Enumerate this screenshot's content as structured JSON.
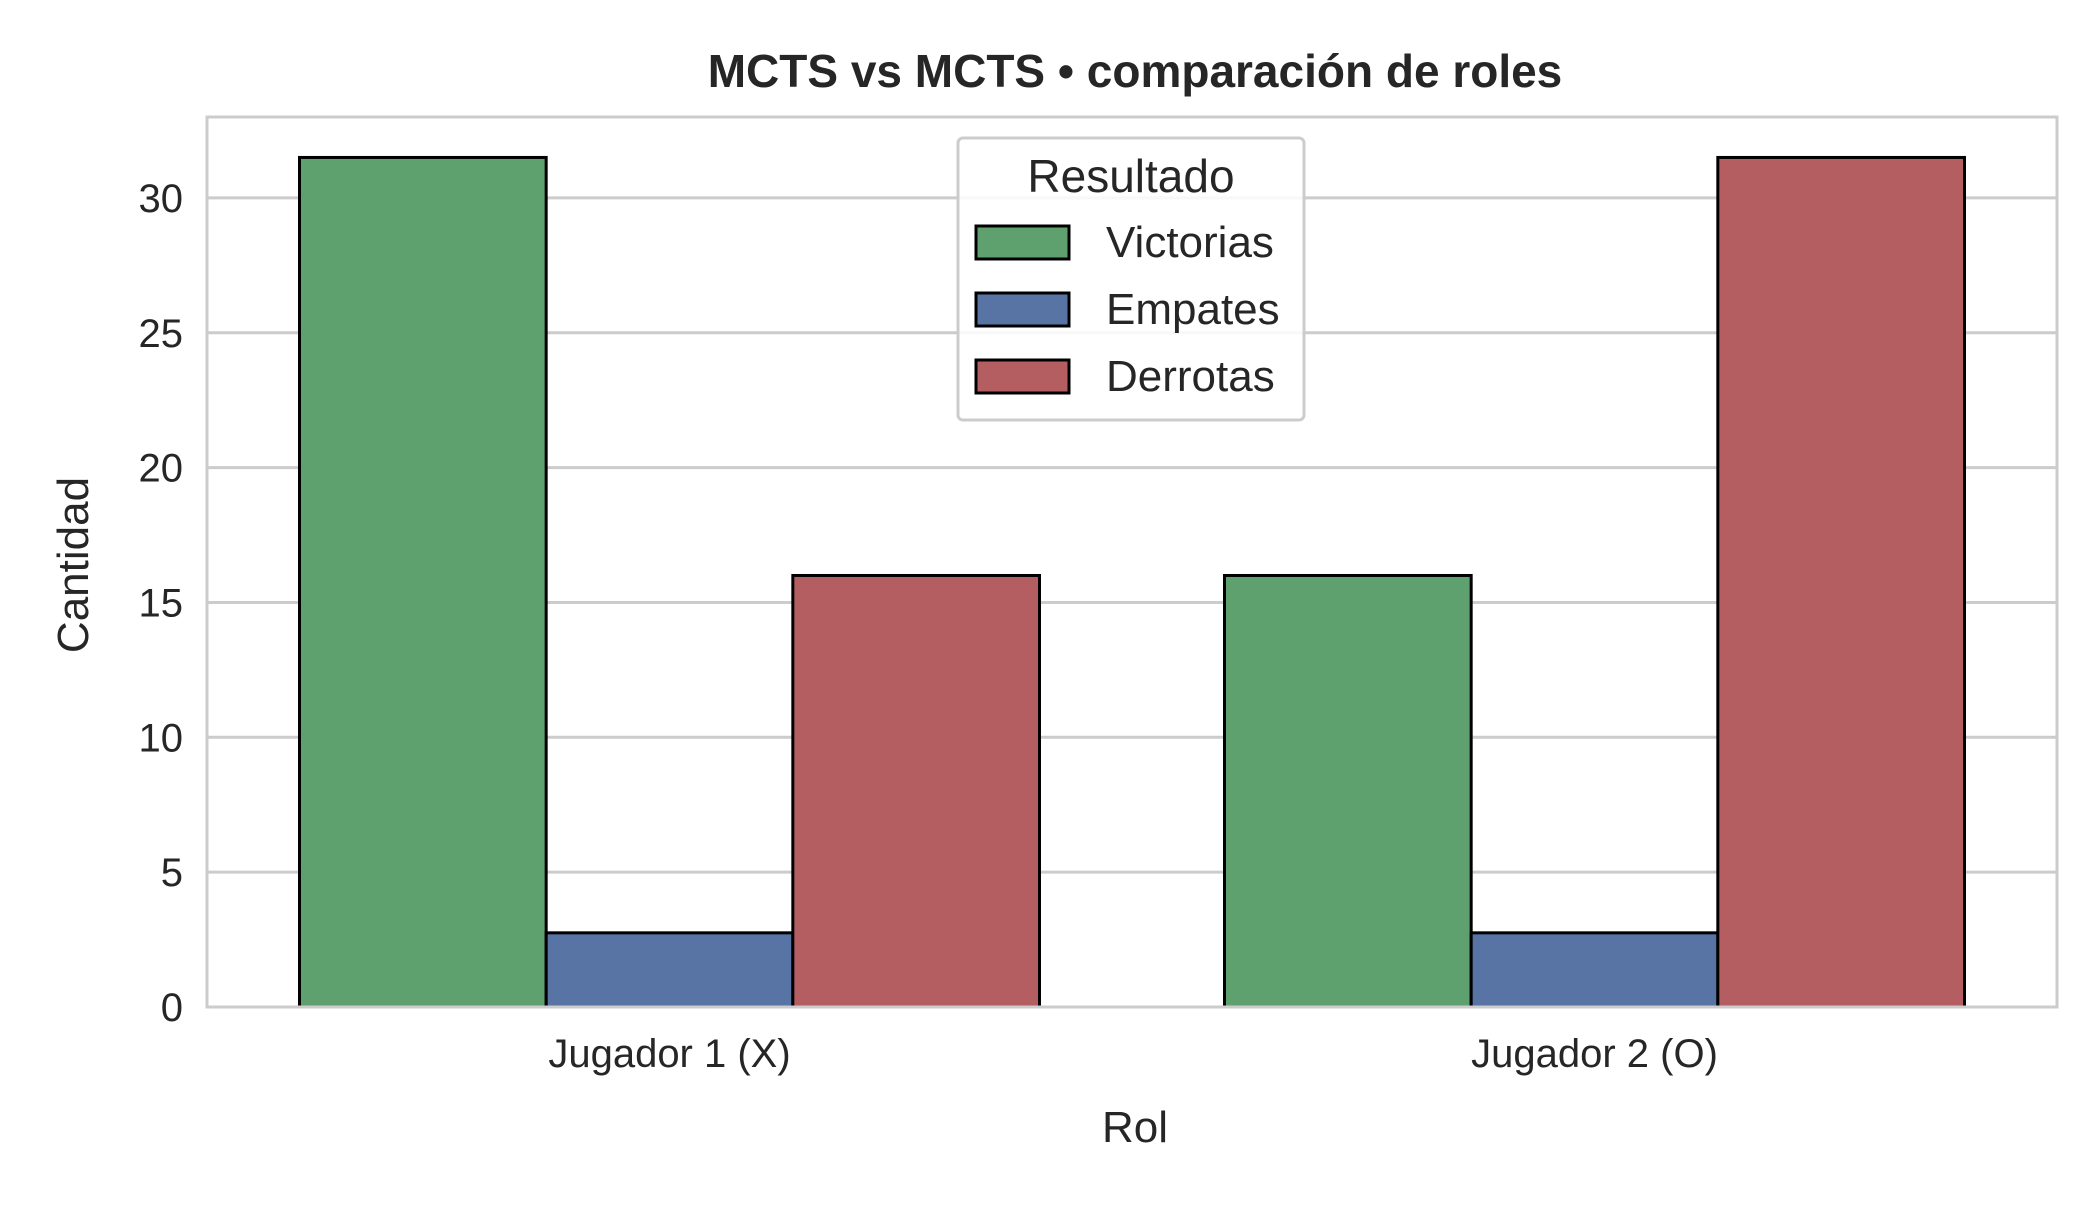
{
  "chart_data": {
    "type": "bar",
    "title": "MCTS vs MCTS • comparación de roles",
    "xlabel": "Rol",
    "ylabel": "Cantidad",
    "categories": [
      "Jugador 1 (X)",
      "Jugador 2 (O)"
    ],
    "series": [
      {
        "name": "Victorias",
        "values": [
          31.5,
          16
        ],
        "color": "#5fa06f"
      },
      {
        "name": "Empates",
        "values": [
          2.75,
          2.75
        ],
        "color": "#5874a5"
      },
      {
        "name": "Derrotas",
        "values": [
          16,
          31.5
        ],
        "color": "#b55e62"
      }
    ],
    "ylim": [
      0,
      33
    ],
    "yticks": [
      0,
      5,
      10,
      15,
      20,
      25,
      30
    ],
    "grid": true,
    "legend": {
      "title": "Resultado",
      "position": "upper-center"
    }
  }
}
